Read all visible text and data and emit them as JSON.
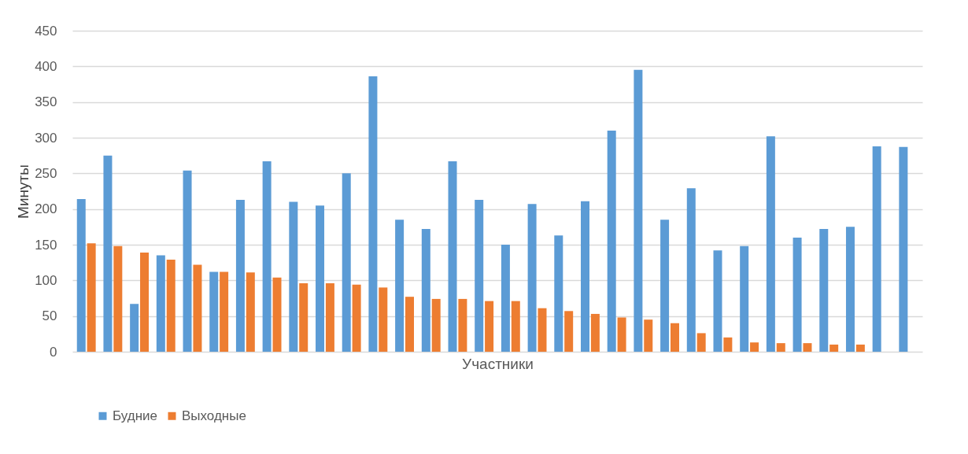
{
  "chart_data": {
    "type": "bar",
    "xlabel": "Участники",
    "ylabel": "Минуты",
    "categories": [
      null,
      null,
      null,
      null,
      null,
      null,
      null,
      null,
      null,
      null,
      null,
      null,
      null,
      null,
      null,
      null,
      null,
      null,
      null,
      null,
      null,
      null,
      null,
      null,
      null,
      null,
      null,
      null,
      null,
      null,
      null,
      null
    ],
    "series": [
      {
        "name": "Будние",
        "color": "#5b9bd5",
        "values": [
          214,
          275,
          67,
          135,
          254,
          112,
          213,
          267,
          210,
          205,
          250,
          386,
          185,
          172,
          267,
          213,
          150,
          207,
          163,
          211,
          310,
          395,
          185,
          229,
          142,
          148,
          302,
          160,
          172,
          175,
          288,
          287
        ]
      },
      {
        "name": "Выходные",
        "color": "#ed7d31",
        "values": [
          152,
          148,
          139,
          129,
          122,
          112,
          111,
          104,
          96,
          96,
          94,
          90,
          77,
          74,
          74,
          71,
          71,
          61,
          57,
          53,
          48,
          45,
          40,
          26,
          20,
          13,
          12,
          12,
          10,
          10,
          null,
          null
        ]
      }
    ],
    "ylim": [
      0,
      450
    ],
    "yticks": [
      0,
      50,
      100,
      150,
      200,
      250,
      300,
      350,
      400,
      450
    ],
    "grid": "y",
    "legend": "bottom",
    "tick_labels": "y"
  }
}
